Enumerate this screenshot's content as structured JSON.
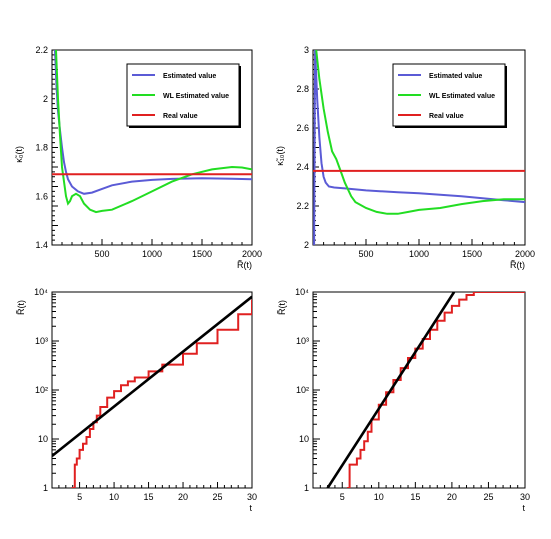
{
  "chart_data": [
    {
      "type": "line",
      "ylabel": "κ̃₀(t)",
      "xlabel": "R̃(t)",
      "xlim": [
        0,
        2000
      ],
      "ylim": [
        1.4,
        2.2
      ],
      "xticks": [
        500,
        1000,
        1500,
        2000
      ],
      "yticks": [
        1.4,
        1.6,
        1.8,
        2,
        2.2
      ],
      "legend_position": "top-right",
      "series": [
        {
          "name": "Estimated value",
          "color": "#5b5bd6",
          "x": [
            30,
            45,
            60,
            80,
            100,
            120,
            140,
            160,
            200,
            260,
            320,
            400,
            500,
            600,
            800,
            1000,
            1200,
            1500,
            1800,
            2000
          ],
          "y": [
            2.2,
            2.05,
            1.95,
            1.87,
            1.8,
            1.74,
            1.7,
            1.67,
            1.64,
            1.62,
            1.61,
            1.615,
            1.63,
            1.645,
            1.66,
            1.667,
            1.671,
            1.674,
            1.672,
            1.67
          ]
        },
        {
          "name": "WL Estimated value",
          "color": "#22dd22",
          "x": [
            40,
            60,
            80,
            100,
            120,
            140,
            160,
            180,
            200,
            240,
            280,
            320,
            380,
            440,
            500,
            600,
            800,
            1000,
            1200,
            1400,
            1600,
            1800,
            1900,
            2000
          ],
          "y": [
            2.2,
            2.0,
            1.85,
            1.72,
            1.66,
            1.6,
            1.57,
            1.58,
            1.6,
            1.61,
            1.6,
            1.57,
            1.545,
            1.535,
            1.54,
            1.545,
            1.58,
            1.62,
            1.66,
            1.69,
            1.71,
            1.72,
            1.718,
            1.71
          ]
        },
        {
          "name": "Real value",
          "color": "#e02020",
          "x": [
            0,
            2000
          ],
          "y": [
            1.69,
            1.69
          ]
        }
      ]
    },
    {
      "type": "line",
      "ylabel": "κ̃₁₀(t)",
      "xlabel": "R̃(t)",
      "xlim": [
        0,
        2000
      ],
      "ylim": [
        2,
        3
      ],
      "xticks": [
        500,
        1000,
        1500,
        2000
      ],
      "yticks": [
        2,
        2.2,
        2.4,
        2.6,
        2.8,
        3
      ],
      "legend_position": "top-right",
      "series": [
        {
          "name": "Estimated value",
          "color": "#5b5bd6",
          "x": [
            10,
            20,
            40,
            60,
            80,
            100,
            120,
            150,
            200,
            300,
            500,
            800,
            1000,
            1400,
            1800,
            2000
          ],
          "y": [
            2.0,
            3.0,
            2.75,
            2.55,
            2.42,
            2.35,
            2.32,
            2.3,
            2.295,
            2.29,
            2.28,
            2.27,
            2.265,
            2.25,
            2.23,
            2.22
          ]
        },
        {
          "name": "WL Estimated value",
          "color": "#22dd22",
          "x": [
            30,
            60,
            100,
            140,
            180,
            220,
            260,
            300,
            360,
            400,
            500,
            600,
            700,
            800,
            900,
            1000,
            1200,
            1400,
            1600,
            1800,
            2000
          ],
          "y": [
            3.0,
            2.85,
            2.7,
            2.58,
            2.48,
            2.44,
            2.38,
            2.32,
            2.25,
            2.22,
            2.19,
            2.17,
            2.16,
            2.16,
            2.17,
            2.18,
            2.19,
            2.21,
            2.225,
            2.235,
            2.235
          ]
        },
        {
          "name": "Real value",
          "color": "#e02020",
          "x": [
            0,
            2000
          ],
          "y": [
            2.38,
            2.38
          ]
        }
      ]
    },
    {
      "type": "line",
      "ylabel": "R̃(t)",
      "xlabel": "t",
      "yscale": "log",
      "xlim": [
        1,
        30
      ],
      "ylim": [
        1,
        10000
      ],
      "xticks": [
        5,
        10,
        15,
        20,
        25,
        30
      ],
      "yticks": [
        1,
        10,
        100,
        1000,
        10000
      ],
      "ytick_labels": [
        "1",
        "10",
        "10²",
        "10³",
        "10⁴"
      ],
      "series": [
        {
          "color": "#e02020",
          "step": true,
          "x": [
            4,
            4.3,
            4.6,
            5,
            5.5,
            6,
            6.5,
            7,
            7.5,
            8,
            9,
            10,
            11,
            12,
            13,
            15,
            17,
            20,
            22,
            25,
            28,
            30
          ],
          "y": [
            1,
            3,
            4,
            6,
            8,
            11,
            16,
            22,
            30,
            45,
            70,
            95,
            125,
            150,
            180,
            240,
            330,
            550,
            900,
            1700,
            3500,
            7000
          ]
        },
        {
          "color": "#000000",
          "x": [
            1,
            30
          ],
          "y": [
            4.5,
            8000
          ]
        }
      ]
    },
    {
      "type": "line",
      "ylabel": "R̃(t)",
      "xlabel": "t",
      "yscale": "log",
      "xlim": [
        1,
        30
      ],
      "ylim": [
        1,
        10000
      ],
      "xticks": [
        5,
        10,
        15,
        20,
        25,
        30
      ],
      "yticks": [
        1,
        10,
        100,
        1000,
        10000
      ],
      "ytick_labels": [
        "1",
        "10",
        "10²",
        "10³",
        "10⁴"
      ],
      "series": [
        {
          "color": "#e02020",
          "step": true,
          "x": [
            5.8,
            6,
            6.5,
            7,
            7.5,
            8,
            8.5,
            9,
            10,
            11,
            12,
            13,
            14,
            15,
            16,
            17,
            18,
            19,
            20,
            21,
            22,
            23,
            25,
            28,
            30
          ],
          "y": [
            1,
            3,
            3,
            4,
            6,
            9,
            14,
            25,
            50,
            90,
            160,
            280,
            450,
            700,
            1100,
            1700,
            2600,
            3800,
            5200,
            7000,
            8700,
            10000,
            10000,
            10000,
            10000
          ]
        },
        {
          "color": "#000000",
          "x": [
            3,
            20.3
          ],
          "y": [
            1,
            10000
          ]
        }
      ]
    }
  ]
}
